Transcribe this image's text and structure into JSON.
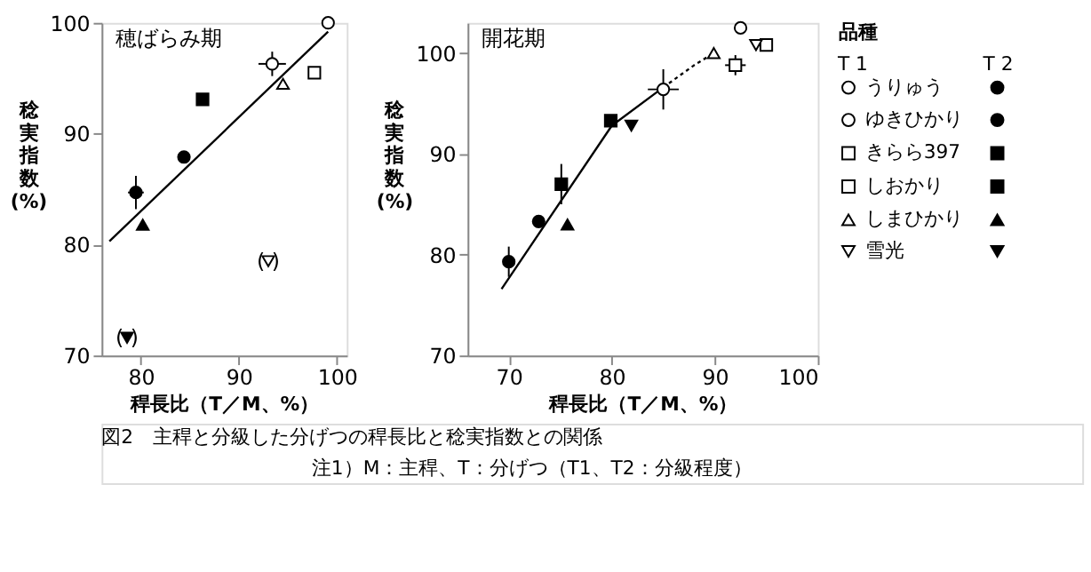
{
  "chart_data": [
    {
      "type": "scatter",
      "title": "穂ばらみ期",
      "xlabel": "稈長比（T／M、%）",
      "ylabel": "稔実指数(%)",
      "xlim": [
        76,
        101
      ],
      "xticks": [
        80,
        90,
        100
      ],
      "ylim": [
        70,
        100
      ],
      "yticks": [
        70,
        80,
        90,
        100
      ],
      "grid": false,
      "annotations": [
        {
          "text": "(   )",
          "x": 78.6,
          "y": 71.6
        },
        {
          "text": "(   )",
          "x": 93,
          "y": 78.5
        }
      ],
      "series": [
        {
          "color": "#ffffff",
          "marker": "circle",
          "x": [
            99.1
          ],
          "values": [
            100
          ]
        },
        {
          "color": "#000000",
          "marker": "circle",
          "x": [
            84.4
          ],
          "values": [
            87.9
          ]
        },
        {
          "color": "#ffffff",
          "marker": "circle",
          "x": [
            93.4
          ],
          "values": [
            96.3
          ],
          "errors": [
            1.1
          ],
          "xerrors": [
            1.4
          ]
        },
        {
          "color": "#000000",
          "marker": "circle",
          "x": [
            79.5
          ],
          "values": [
            84.7
          ],
          "errors": [
            1.5
          ],
          "xerrors": [
            0.8
          ]
        },
        {
          "color": "#ffffff",
          "marker": "square",
          "x": [
            97.7
          ],
          "values": [
            95.5
          ]
        },
        {
          "color": "#000000",
          "marker": "square",
          "x": [
            86.3
          ],
          "values": [
            93.1
          ]
        },
        {
          "color": "#ffffff",
          "marker": "triangle",
          "x": [
            94.5
          ],
          "values": [
            94.5
          ]
        },
        {
          "color": "#000000",
          "marker": "triangle",
          "x": [
            80.2
          ],
          "values": [
            81.8
          ]
        },
        {
          "color": "#ffffff",
          "marker": "triangle-down",
          "x": [
            93
          ],
          "values": [
            78.5
          ]
        },
        {
          "color": "#000000",
          "marker": "triangle-down",
          "x": [
            78.6
          ],
          "values": [
            71.6
          ]
        },
        {
          "type": "line",
          "color": "#000000",
          "marker": "none",
          "line_style": "solid",
          "x": [
            76.8,
            99.1
          ],
          "values": [
            80.3,
            99.2
          ]
        }
      ]
    },
    {
      "type": "scatter",
      "title": "開花期",
      "xlabel": "稈長比（T／M、%）",
      "ylabel": "稔実指数(%)",
      "xlim": [
        66,
        100
      ],
      "xticks": [
        70,
        80,
        90,
        100
      ],
      "ylim": [
        70,
        103
      ],
      "yticks": [
        70,
        80,
        90,
        100
      ],
      "grid": false,
      "legend": "right",
      "legend_title": "品種",
      "annotations": [
        "T 1",
        "T 2",
        "図2　主稈と分級した分げつの稈長比と稔実指数との関係",
        "注1）M：主稈、T：分げつ（T1、T2：分級程度）"
      ],
      "series": [
        {
          "name": "うりゅう",
          "color": "#ffffff",
          "marker": "circle",
          "x": [
            92.5
          ],
          "values": [
            102.5
          ]
        },
        {
          "color": "#000000",
          "marker": "circle",
          "x": [
            72.9
          ],
          "values": [
            83.3
          ]
        },
        {
          "name": "ゆきひかり",
          "color": "#ffffff",
          "marker": "circle",
          "x": [
            85
          ],
          "values": [
            96.4
          ],
          "errors": [
            2
          ],
          "xerrors": [
            1.5
          ]
        },
        {
          "color": "#000000",
          "marker": "circle",
          "x": [
            70
          ],
          "values": [
            79.3
          ],
          "errors": [
            1.5
          ]
        },
        {
          "name": "きらら397",
          "color": "#ffffff",
          "marker": "square",
          "x": [
            95
          ],
          "values": [
            100.8
          ]
        },
        {
          "color": "#000000",
          "marker": "square",
          "x": [
            79.9
          ],
          "values": [
            93.3
          ]
        },
        {
          "name": "しおかり",
          "color": "#ffffff",
          "marker": "square",
          "x": [
            92
          ],
          "values": [
            98.8
          ],
          "errors": [
            1
          ],
          "xerrors": [
            1
          ]
        },
        {
          "color": "#000000",
          "marker": "square",
          "x": [
            75.1
          ],
          "values": [
            87
          ],
          "errors": [
            2
          ]
        },
        {
          "name": "しまひかり",
          "color": "#ffffff",
          "marker": "triangle",
          "x": [
            89.9
          ],
          "values": [
            100
          ]
        },
        {
          "color": "#000000",
          "marker": "triangle",
          "x": [
            75.7
          ],
          "values": [
            83
          ]
        },
        {
          "name": "雪光",
          "color": "#ffffff",
          "marker": "triangle-down",
          "x": [
            94
          ],
          "values": [
            100.8
          ]
        },
        {
          "color": "#000000",
          "marker": "triangle-down",
          "x": [
            81.9
          ],
          "values": [
            92.8
          ]
        },
        {
          "type": "line",
          "color": "#000000",
          "marker": "none",
          "line_style": "solid",
          "x": [
            69.3,
            80,
            85
          ],
          "values": [
            76.6,
            92.8,
            96.6
          ]
        },
        {
          "type": "line",
          "color": "#000000",
          "marker": "none",
          "line_style": "dotted",
          "x": [
            85,
            88,
            89.9
          ],
          "values": [
            96.6,
            98.8,
            100
          ]
        }
      ]
    }
  ]
}
